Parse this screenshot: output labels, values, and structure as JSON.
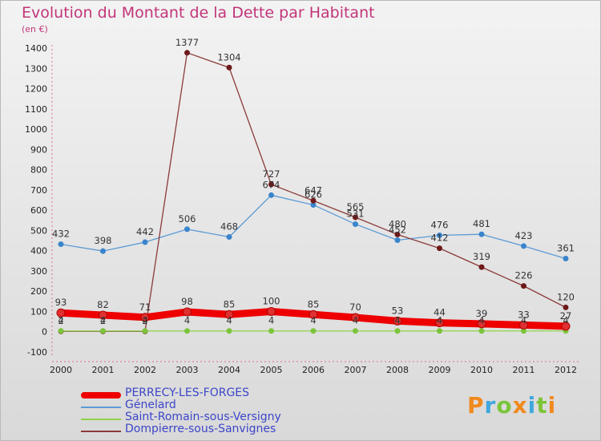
{
  "header": {
    "title": "Evolution du Montant de la Dette par Habitant",
    "unit": "(en €)"
  },
  "logo": {
    "text": "Proxiti"
  },
  "chart_data": {
    "type": "line",
    "title": "Evolution du Montant de la Dette par Habitant",
    "ylabel": "(en €)",
    "xlabel": "",
    "x": [
      "2000",
      "2001",
      "2002",
      "2003",
      "2004",
      "2005",
      "2006",
      "2007",
      "2008",
      "2009",
      "2010",
      "2011",
      "2012"
    ],
    "ylim": [
      -100,
      1400
    ],
    "yticks": [
      -100,
      0,
      100,
      200,
      300,
      400,
      500,
      600,
      700,
      800,
      900,
      1000,
      1100,
      1200,
      1300,
      1400
    ],
    "grid": false,
    "legend_position": "bottom",
    "series": [
      {
        "name": "PERRECY-LES-FORGES",
        "color": "#ee0000",
        "marker": "#e03030",
        "values": [
          93,
          82,
          71,
          98,
          85,
          100,
          85,
          70,
          53,
          44,
          39,
          33,
          27
        ]
      },
      {
        "name": "Génelard",
        "color": "#5b9bd5",
        "marker": "#3a84cc",
        "values": [
          432,
          398,
          442,
          506,
          468,
          674,
          626,
          531,
          452,
          476,
          481,
          423,
          361
        ]
      },
      {
        "name": "Saint-Romain-sous-Versigny",
        "color": "#8fd34a",
        "marker": "#7cc43a",
        "values": [
          4,
          4,
          4,
          4,
          4,
          4,
          4,
          4,
          4,
          4,
          4,
          4,
          4
        ]
      },
      {
        "name": "Dompierre-sous-Sanvignes",
        "color": "#8b3a3a",
        "marker": "#6e1a1a",
        "values": [
          2,
          2,
          2,
          1377,
          1304,
          727,
          647,
          565,
          480,
          412,
          319,
          226,
          120
        ]
      }
    ]
  }
}
